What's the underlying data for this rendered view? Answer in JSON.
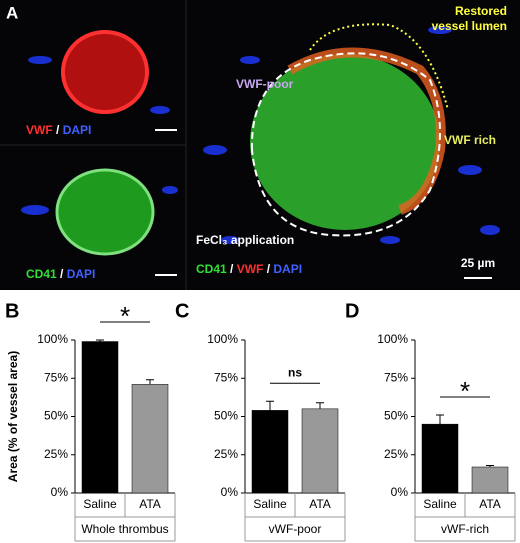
{
  "panel_a": {
    "letter": "A",
    "top_left": {
      "stain": "VWF",
      "sep": " / ",
      "counter": "DAPI"
    },
    "bottom_left": {
      "stain": "CD41",
      "sep": " / ",
      "counter": "DAPI"
    },
    "main": {
      "stain1": "CD41",
      "sep1": " / ",
      "stain2": "VWF",
      "sep2": " / ",
      "counter": "DAPI"
    },
    "vwf_poor": "VWF-poor",
    "restored": [
      "Restored",
      "vessel lumen"
    ],
    "vwf_rich": "VWF rich",
    "fecl3": "FeCl₃ application",
    "scale": "25 µm"
  },
  "chart_data": [
    {
      "type": "bar",
      "letter": "B",
      "ylabel": "Area (% of vessel area)",
      "xlabel": "Whole thrombus",
      "categories": [
        "Saline",
        "ATA"
      ],
      "values": [
        99,
        71
      ],
      "errors": [
        1,
        3
      ],
      "colors": [
        "#000000",
        "#999999"
      ],
      "ylim": [
        0,
        100
      ],
      "yticks": [
        {
          "value": 0,
          "label": "0%"
        },
        {
          "value": 25,
          "label": "25%"
        },
        {
          "value": 50,
          "label": "50%"
        },
        {
          "value": 75,
          "label": "75%"
        },
        {
          "value": 100,
          "label": "100%"
        }
      ],
      "significance": "*"
    },
    {
      "type": "bar",
      "letter": "C",
      "xlabel": "vWF-poor",
      "categories": [
        "Saline",
        "ATA"
      ],
      "values": [
        54,
        55
      ],
      "errors": [
        6,
        4
      ],
      "colors": [
        "#000000",
        "#999999"
      ],
      "ylim": [
        0,
        100
      ],
      "yticks": [
        {
          "value": 0,
          "label": "0%"
        },
        {
          "value": 25,
          "label": "25%"
        },
        {
          "value": 50,
          "label": "50%"
        },
        {
          "value": 75,
          "label": "75%"
        },
        {
          "value": 100,
          "label": "100%"
        }
      ],
      "significance": "ns"
    },
    {
      "type": "bar",
      "letter": "D",
      "xlabel": "vWF-rich",
      "categories": [
        "Saline",
        "ATA"
      ],
      "values": [
        45,
        17
      ],
      "errors": [
        6,
        1
      ],
      "colors": [
        "#000000",
        "#999999"
      ],
      "ylim": [
        0,
        100
      ],
      "yticks": [
        {
          "value": 0,
          "label": "0%"
        },
        {
          "value": 25,
          "label": "25%"
        },
        {
          "value": 50,
          "label": "50%"
        },
        {
          "value": 75,
          "label": "75%"
        },
        {
          "value": 100,
          "label": "100%"
        }
      ],
      "significance": "*"
    }
  ]
}
